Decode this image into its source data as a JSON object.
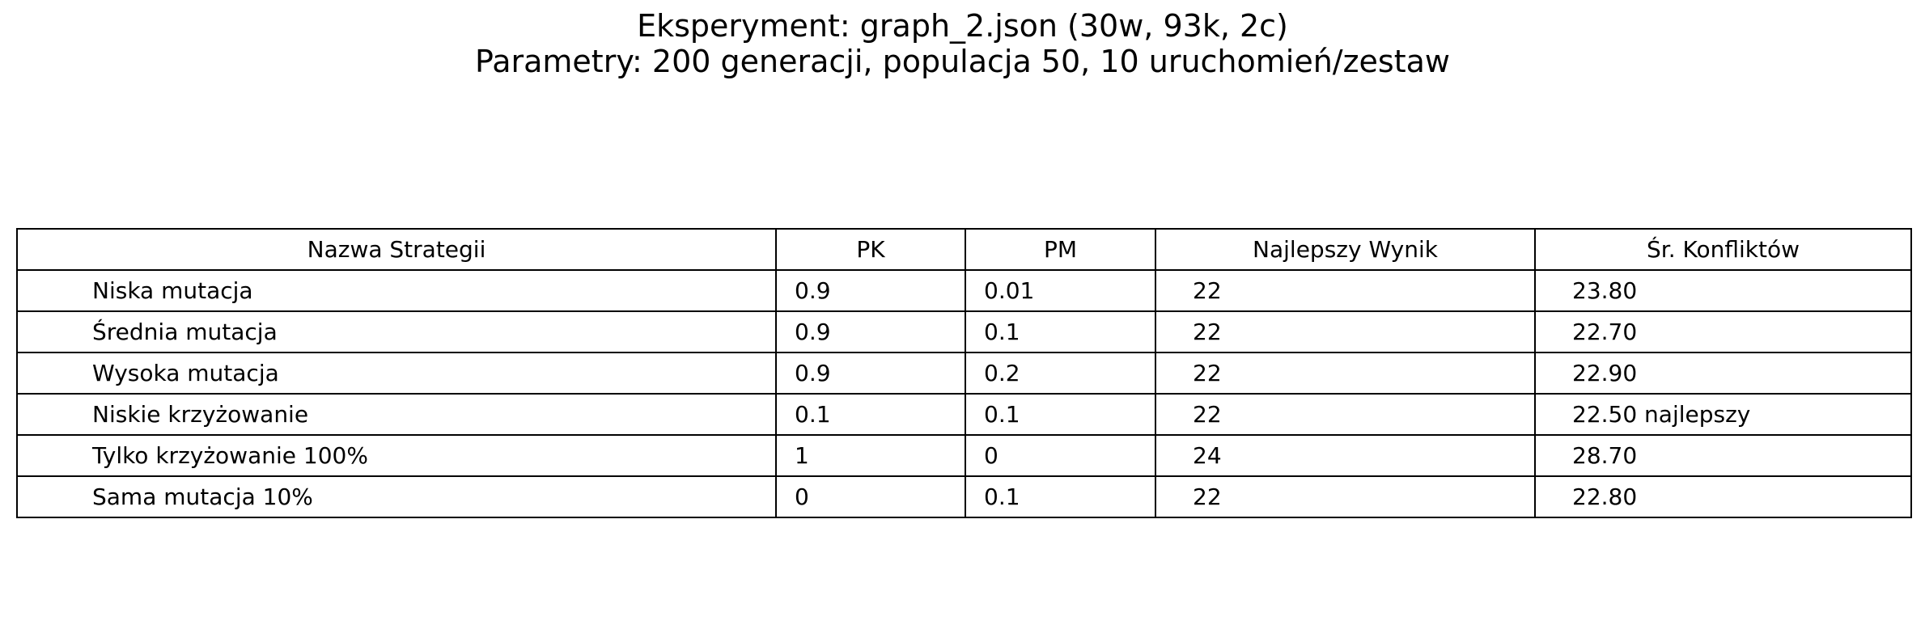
{
  "chart_data": {
    "type": "table",
    "title": "Eksperyment: graph_2.json (30w, 93k, 2c)",
    "subtitle": "Parametry: 200 generacji, populacja 50, 10 uruchomień/zestaw",
    "columns": [
      "Nazwa Strategii",
      "PK",
      "PM",
      "Najlepszy Wynik",
      "Śr. Konfliktów"
    ],
    "rows": [
      [
        "Niska mutacja",
        "0.9",
        "0.01",
        "22",
        "23.80"
      ],
      [
        "Średnia mutacja",
        "0.9",
        "0.1",
        "22",
        "22.70"
      ],
      [
        "Wysoka mutacja",
        "0.9",
        "0.2",
        "22",
        "22.90"
      ],
      [
        "Niskie krzyżowanie",
        "0.1",
        "0.1",
        "22",
        "22.50 najlepszy"
      ],
      [
        "Tylko krzyżowanie 100%",
        "1",
        "0",
        "24",
        "28.70"
      ],
      [
        "Sama mutacja 10%",
        "0",
        "0.1",
        "22",
        "22.80"
      ]
    ]
  }
}
